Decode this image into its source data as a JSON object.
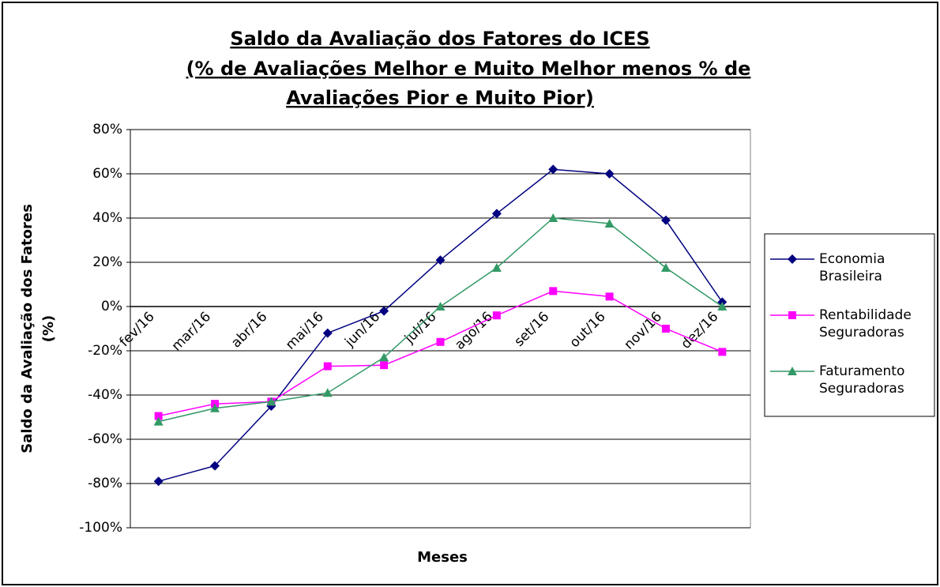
{
  "chart_data": {
    "type": "line",
    "title": [
      "Saldo da Avaliação dos Fatores do ICES",
      "(% de Avaliações Melhor e Muito Melhor menos % de",
      "Avaliações Pior e Muito Pior)"
    ],
    "y_label": [
      "Saldo da Avaliação dos Fatores",
      "(%)"
    ],
    "x_label": "Meses",
    "categories": [
      "fev/16",
      "mar/16",
      "abr/16",
      "mai/16",
      "jun/16",
      "jul/16",
      "ago/16",
      "set/16",
      "out/16",
      "nov/16",
      "dez/16"
    ],
    "series": [
      {
        "name": "Economia Brasileira",
        "color": "#000080",
        "marker": "diamond",
        "values": [
          -79,
          -72,
          -45,
          -12,
          -2,
          21,
          42,
          62,
          60,
          39,
          2
        ]
      },
      {
        "name": "Rentabilidade Seguradoras",
        "color": "#ff00ff",
        "marker": "square",
        "values": [
          -49.5,
          -44,
          -43,
          -27,
          -26.5,
          -16,
          -4,
          7,
          4.5,
          -10,
          -20.5
        ]
      },
      {
        "name": "Faturamento Seguradoras",
        "color": "#339966",
        "marker": "triangle",
        "values": [
          -52,
          -46,
          -43,
          -39,
          -23,
          0,
          17.5,
          40,
          37.5,
          17.5,
          0
        ]
      }
    ],
    "ylim": [
      -100,
      80
    ],
    "yticks": [
      {
        "value": -100,
        "label": "-100%"
      },
      {
        "value": -80,
        "label": "-80%"
      },
      {
        "value": -60,
        "label": "-60%"
      },
      {
        "value": -40,
        "label": "-40%"
      },
      {
        "value": -20,
        "label": "-20%"
      },
      {
        "value": 0,
        "label": "0%"
      },
      {
        "value": 20,
        "label": "20%"
      },
      {
        "value": 40,
        "label": "40%"
      },
      {
        "value": 60,
        "label": "60%"
      },
      {
        "value": 80,
        "label": "80%"
      }
    ],
    "grid": true,
    "legend": "right"
  }
}
